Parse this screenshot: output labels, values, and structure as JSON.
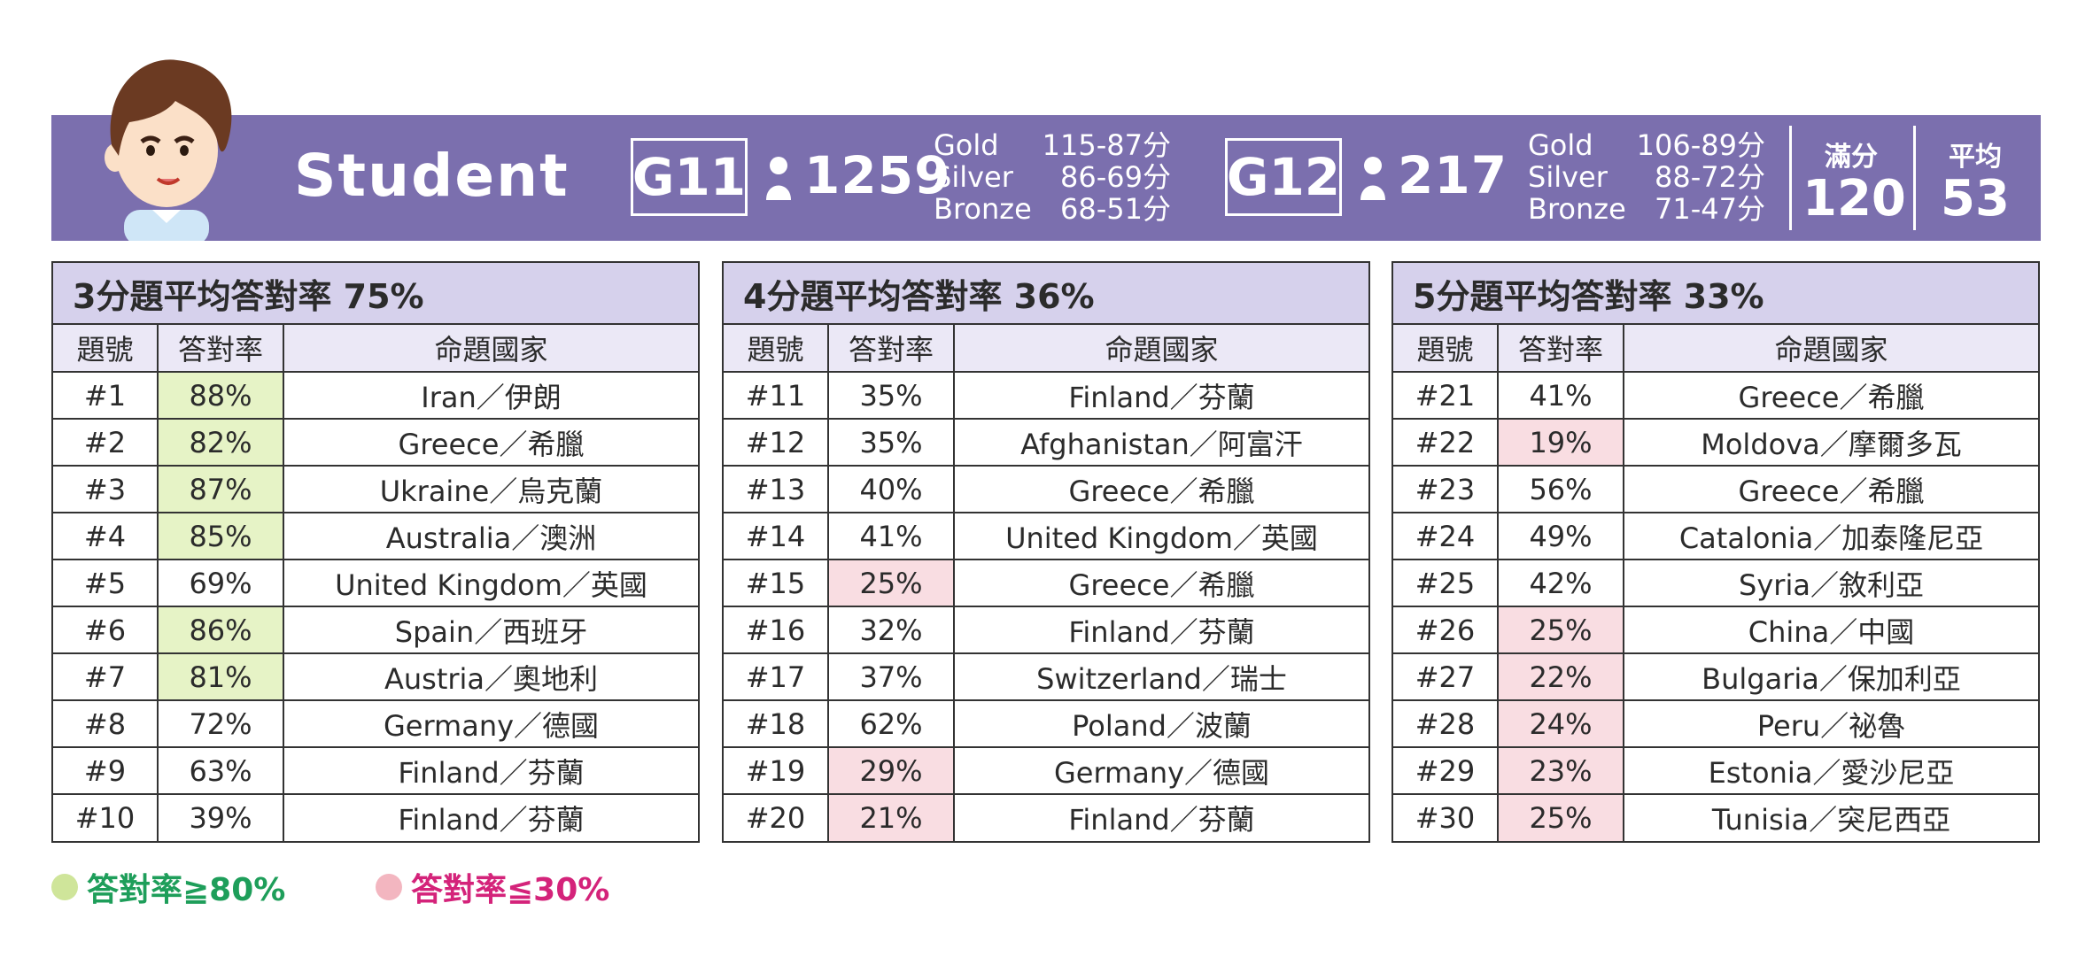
{
  "header": {
    "title": "Student",
    "g11": {
      "grade": "G11",
      "count": "1259",
      "medals": [
        {
          "name": "Gold",
          "range": "115-87分"
        },
        {
          "name": "Silver",
          "range": "86-69分"
        },
        {
          "name": "Bronze",
          "range": "68-51分"
        }
      ]
    },
    "g12": {
      "grade": "G12",
      "count": "217",
      "medals": [
        {
          "name": "Gold",
          "range": "106-89分"
        },
        {
          "name": "Silver",
          "range": "88-72分"
        },
        {
          "name": "Bronze",
          "range": "71-47分"
        }
      ]
    },
    "full_score_label": "滿分",
    "full_score_value": "120",
    "average_label": "平均",
    "average_value": "53"
  },
  "columns": [
    "題號",
    "答對率",
    "命題國家"
  ],
  "tables": [
    {
      "title": "3分題平均答對率 75%",
      "rows": [
        {
          "no": "#1",
          "rate": "88%",
          "country": "Iran／伊朗",
          "level": "high"
        },
        {
          "no": "#2",
          "rate": "82%",
          "country": "Greece／希臘",
          "level": "high"
        },
        {
          "no": "#3",
          "rate": "87%",
          "country": "Ukraine／烏克蘭",
          "level": "high"
        },
        {
          "no": "#4",
          "rate": "85%",
          "country": "Australia／澳洲",
          "level": "high"
        },
        {
          "no": "#5",
          "rate": "69%",
          "country": "United Kingdom／英國",
          "level": ""
        },
        {
          "no": "#6",
          "rate": "86%",
          "country": "Spain／西班牙",
          "level": "high"
        },
        {
          "no": "#7",
          "rate": "81%",
          "country": "Austria／奧地利",
          "level": "high"
        },
        {
          "no": "#8",
          "rate": "72%",
          "country": "Germany／德國",
          "level": ""
        },
        {
          "no": "#9",
          "rate": "63%",
          "country": "Finland／芬蘭",
          "level": ""
        },
        {
          "no": "#10",
          "rate": "39%",
          "country": "Finland／芬蘭",
          "level": ""
        }
      ]
    },
    {
      "title": "4分題平均答對率 36%",
      "rows": [
        {
          "no": "#11",
          "rate": "35%",
          "country": "Finland／芬蘭",
          "level": ""
        },
        {
          "no": "#12",
          "rate": "35%",
          "country": "Afghanistan／阿富汗",
          "level": ""
        },
        {
          "no": "#13",
          "rate": "40%",
          "country": "Greece／希臘",
          "level": ""
        },
        {
          "no": "#14",
          "rate": "41%",
          "country": "United Kingdom／英國",
          "level": ""
        },
        {
          "no": "#15",
          "rate": "25%",
          "country": "Greece／希臘",
          "level": "low"
        },
        {
          "no": "#16",
          "rate": "32%",
          "country": "Finland／芬蘭",
          "level": ""
        },
        {
          "no": "#17",
          "rate": "37%",
          "country": "Switzerland／瑞士",
          "level": ""
        },
        {
          "no": "#18",
          "rate": "62%",
          "country": "Poland／波蘭",
          "level": ""
        },
        {
          "no": "#19",
          "rate": "29%",
          "country": "Germany／德國",
          "level": "low"
        },
        {
          "no": "#20",
          "rate": "21%",
          "country": "Finland／芬蘭",
          "level": "low"
        }
      ]
    },
    {
      "title": "5分題平均答對率 33%",
      "rows": [
        {
          "no": "#21",
          "rate": "41%",
          "country": "Greece／希臘",
          "level": ""
        },
        {
          "no": "#22",
          "rate": "19%",
          "country": "Moldova／摩爾多瓦",
          "level": "low"
        },
        {
          "no": "#23",
          "rate": "56%",
          "country": "Greece／希臘",
          "level": ""
        },
        {
          "no": "#24",
          "rate": "49%",
          "country": "Catalonia／加泰隆尼亞",
          "level": ""
        },
        {
          "no": "#25",
          "rate": "42%",
          "country": "Syria／敘利亞",
          "level": ""
        },
        {
          "no": "#26",
          "rate": "25%",
          "country": "China／中國",
          "level": "low"
        },
        {
          "no": "#27",
          "rate": "22%",
          "country": "Bulgaria／保加利亞",
          "level": "low"
        },
        {
          "no": "#28",
          "rate": "24%",
          "country": "Peru／祕魯",
          "level": "low"
        },
        {
          "no": "#29",
          "rate": "23%",
          "country": "Estonia／愛沙尼亞",
          "level": "low"
        },
        {
          "no": "#30",
          "rate": "25%",
          "country": "Tunisia／突尼西亞",
          "level": "low"
        }
      ]
    }
  ],
  "legend": {
    "high": {
      "label": "答對率≧80%",
      "color": "#1e9e5a",
      "dot": "#cfe59a"
    },
    "low": {
      "label": "答對率≦30%",
      "color": "#d4237a",
      "dot": "#f3b6c0"
    }
  },
  "colors": {
    "banner": "#7b6fae",
    "header_row": "#d6d1ec",
    "high": "#e6f3c6",
    "low": "#f9dde2"
  }
}
